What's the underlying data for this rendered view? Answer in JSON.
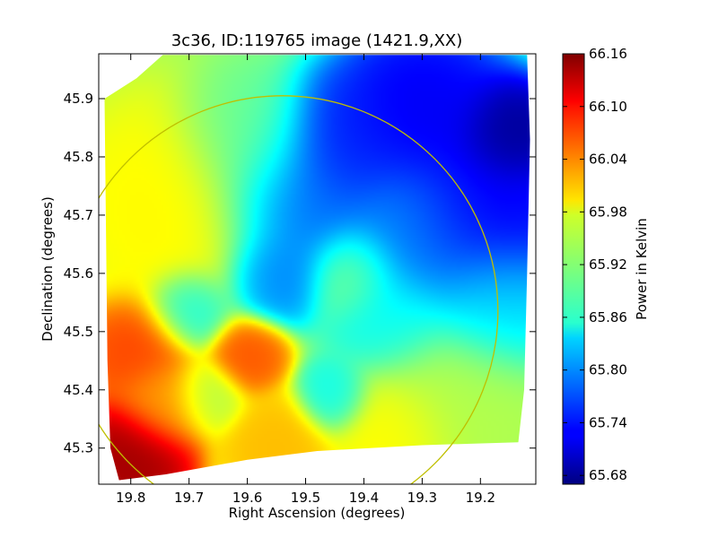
{
  "chart_data": {
    "type": "heatmap",
    "title": "3c36, ID:119765 image (1421.9,XX)",
    "xlabel": "Right Ascension (degrees)",
    "ylabel": "Declination (degrees)",
    "xlim": [
      19.855,
      19.105
    ],
    "ylim": [
      45.238,
      45.977
    ],
    "x_ticks": [
      "19.8",
      "19.7",
      "19.6",
      "19.5",
      "19.4",
      "19.3",
      "19.2"
    ],
    "y_ticks": [
      "45.3",
      "45.4",
      "45.5",
      "45.6",
      "45.7",
      "45.8",
      "45.9"
    ],
    "colorbar": {
      "label": "Power in Kelvin",
      "range": [
        65.67,
        66.16
      ],
      "ticks": [
        "65.68",
        "65.74",
        "65.80",
        "65.86",
        "65.92",
        "65.98",
        "66.04",
        "66.10",
        "66.16"
      ],
      "colormap": "jet"
    },
    "circle": {
      "center_ra": 19.54,
      "center_dec": 45.535,
      "radius_deg": 0.37,
      "color": "#bfbf00"
    },
    "image_footprint": [
      [
        19.845,
        45.9
      ],
      [
        19.79,
        45.935
      ],
      [
        19.745,
        45.975
      ],
      [
        19.12,
        45.975
      ],
      [
        19.115,
        45.83
      ],
      [
        19.12,
        45.6
      ],
      [
        19.125,
        45.4
      ],
      [
        19.135,
        45.31
      ],
      [
        19.3,
        45.305
      ],
      [
        19.48,
        45.295
      ],
      [
        19.6,
        45.28
      ],
      [
        19.74,
        45.255
      ],
      [
        19.82,
        45.245
      ],
      [
        19.835,
        45.3
      ],
      [
        19.84,
        45.45
      ]
    ],
    "blobs": [
      {
        "ra": 19.8,
        "dec": 45.28,
        "value": 66.15,
        "spread": 0.05
      },
      {
        "ra": 19.79,
        "dec": 45.47,
        "value": 66.07,
        "spread": 0.045
      },
      {
        "ra": 19.6,
        "dec": 45.46,
        "value": 66.06,
        "spread": 0.032
      },
      {
        "ra": 19.74,
        "dec": 45.38,
        "value": 66.02,
        "spread": 0.04
      },
      {
        "ra": 19.55,
        "dec": 45.3,
        "value": 66.01,
        "spread": 0.045
      },
      {
        "ra": 19.67,
        "dec": 45.39,
        "value": 65.94,
        "spread": 0.03
      },
      {
        "ra": 19.72,
        "dec": 45.71,
        "value": 65.98,
        "spread": 0.09
      },
      {
        "ra": 19.6,
        "dec": 45.83,
        "value": 65.9,
        "spread": 0.06
      },
      {
        "ra": 19.7,
        "dec": 45.54,
        "value": 65.86,
        "spread": 0.035
      },
      {
        "ra": 19.42,
        "dec": 45.6,
        "value": 65.92,
        "spread": 0.04
      },
      {
        "ra": 19.45,
        "dec": 45.39,
        "value": 65.86,
        "spread": 0.03
      },
      {
        "ra": 19.52,
        "dec": 45.72,
        "value": 65.78,
        "spread": 0.07
      },
      {
        "ra": 19.55,
        "dec": 45.6,
        "value": 65.79,
        "spread": 0.04
      },
      {
        "ra": 19.43,
        "dec": 45.82,
        "value": 65.74,
        "spread": 0.06
      },
      {
        "ra": 19.3,
        "dec": 45.88,
        "value": 65.72,
        "spread": 0.07
      },
      {
        "ra": 19.32,
        "dec": 45.66,
        "value": 65.8,
        "spread": 0.07
      },
      {
        "ra": 19.15,
        "dec": 45.84,
        "value": 65.67,
        "spread": 0.045
      },
      {
        "ra": 19.2,
        "dec": 45.7,
        "value": 65.72,
        "spread": 0.08
      },
      {
        "ra": 19.35,
        "dec": 45.52,
        "value": 65.86,
        "spread": 0.05
      },
      {
        "ra": 19.18,
        "dec": 45.55,
        "value": 65.84,
        "spread": 0.06
      },
      {
        "ra": 19.25,
        "dec": 45.4,
        "value": 65.94,
        "spread": 0.07
      },
      {
        "ra": 19.35,
        "dec": 45.33,
        "value": 65.98,
        "spread": 0.05
      }
    ],
    "background_value": 65.93
  }
}
